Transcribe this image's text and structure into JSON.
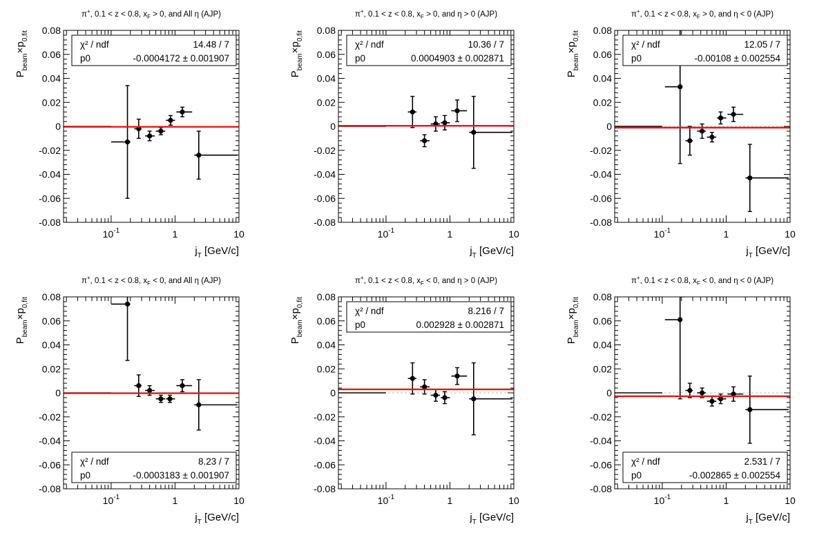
{
  "chart_data": [
    {
      "type": "scatter",
      "title": "π⁺, 0.1 < z < 0.8, x_F > 0, and All η (AJP)",
      "title_parts": {
        "a": "π",
        "a_sup": "+",
        "b": ", 0.1 < z < 0.8, x",
        "b_sub": "F",
        "c": " > 0, and All η (AJP)"
      },
      "xlabel": "j_T [GeV/c]",
      "ylabel": "P_beam×p_0,fit",
      "x_scale": "log",
      "xlim": [
        0.018,
        10
      ],
      "ylim": [
        -0.08,
        0.08
      ],
      "grid": false,
      "stats_position": "top",
      "stats": {
        "chi2_label": "χ² / ndf",
        "chi2_value": "14.48 / 7",
        "p0_label": "p0",
        "p0_value": "-0.0004172 ± 0.001907"
      },
      "fit": {
        "p0": -0.0004172
      },
      "points": [
        {
          "x": 0.18,
          "xlo": 0.1,
          "xhi": 0.2,
          "y": -0.013,
          "ey": 0.047
        },
        {
          "x": 0.27,
          "xlo": 0.23,
          "xhi": 0.3,
          "y": -0.002,
          "ey": 0.008
        },
        {
          "x": 0.4,
          "xlo": 0.34,
          "xhi": 0.48,
          "y": -0.008,
          "ey": 0.004
        },
        {
          "x": 0.6,
          "xlo": 0.5,
          "xhi": 0.7,
          "y": -0.004,
          "ey": 0.003
        },
        {
          "x": 0.85,
          "xlo": 0.72,
          "xhi": 1.0,
          "y": 0.005,
          "ey": 0.004
        },
        {
          "x": 1.3,
          "xlo": 1.05,
          "xhi": 1.85,
          "y": 0.012,
          "ey": 0.004
        },
        {
          "x": 2.35,
          "xlo": 2.0,
          "xhi": 9.5,
          "y": -0.024,
          "ey": 0.02
        },
        {
          "x": 0.0,
          "xlo": 0.018,
          "xhi": 0.1,
          "y": 0.0,
          "ey": 0.0
        }
      ]
    },
    {
      "type": "scatter",
      "title": "π⁺, 0.1 < z < 0.8, x_F > 0, and η > 0 (AJP)",
      "title_parts": {
        "a": "π",
        "a_sup": "+",
        "b": ", 0.1 < z < 0.8, x",
        "b_sub": "F",
        "c": " > 0, and η > 0 (AJP)"
      },
      "xlabel": "j_T [GeV/c]",
      "ylabel": "P_beam×p_0,fit",
      "x_scale": "log",
      "xlim": [
        0.018,
        10
      ],
      "ylim": [
        -0.08,
        0.08
      ],
      "grid": false,
      "stats_position": "top",
      "stats": {
        "chi2_label": "χ² / ndf",
        "chi2_value": "10.36 / 7",
        "p0_label": "p0",
        "p0_value": "0.0004903 ± 0.002871"
      },
      "fit": {
        "p0": 0.0004903
      },
      "points": [
        {
          "x": 0.0,
          "xlo": 0.018,
          "xhi": 0.1,
          "y": 0.0,
          "ey": 0.0
        },
        {
          "x": 0.26,
          "xlo": 0.22,
          "xhi": 0.3,
          "y": 0.012,
          "ey": 0.013
        },
        {
          "x": 0.4,
          "xlo": 0.34,
          "xhi": 0.48,
          "y": -0.012,
          "ey": 0.005
        },
        {
          "x": 0.6,
          "xlo": 0.5,
          "xhi": 0.7,
          "y": 0.002,
          "ey": 0.006
        },
        {
          "x": 0.83,
          "xlo": 0.72,
          "xhi": 1.0,
          "y": 0.003,
          "ey": 0.006
        },
        {
          "x": 1.3,
          "xlo": 1.05,
          "xhi": 1.85,
          "y": 0.013,
          "ey": 0.009
        },
        {
          "x": 2.35,
          "xlo": 2.0,
          "xhi": 9.5,
          "y": -0.005,
          "ey": 0.03
        }
      ]
    },
    {
      "type": "scatter",
      "title": "π⁺, 0.1 < z < 0.8, x_F > 0, and η < 0 (AJP)",
      "title_parts": {
        "a": "π",
        "a_sup": "+",
        "b": ", 0.1 < z < 0.8, x",
        "b_sub": "F",
        "c": " > 0, and η < 0 (AJP)"
      },
      "xlabel": "j_T [GeV/c]",
      "ylabel": "P_beam×p_0,fit",
      "x_scale": "log",
      "xlim": [
        0.018,
        10
      ],
      "ylim": [
        -0.08,
        0.08
      ],
      "grid": false,
      "stats_position": "top",
      "stats": {
        "chi2_label": "χ² / ndf",
        "chi2_value": "12.05 / 7",
        "p0_label": "p0",
        "p0_value": "-0.00108 ± 0.002554"
      },
      "fit": {
        "p0": -0.00108
      },
      "points": [
        {
          "x": 0.0,
          "xlo": 0.018,
          "xhi": 0.1,
          "y": 0.0,
          "ey": 0.0
        },
        {
          "x": 0.19,
          "xlo": 0.11,
          "xhi": 0.2,
          "y": 0.033,
          "ey": 0.064
        },
        {
          "x": 0.27,
          "xlo": 0.23,
          "xhi": 0.3,
          "y": -0.012,
          "ey": 0.012
        },
        {
          "x": 0.42,
          "xlo": 0.35,
          "xhi": 0.48,
          "y": -0.004,
          "ey": 0.006
        },
        {
          "x": 0.6,
          "xlo": 0.5,
          "xhi": 0.7,
          "y": -0.009,
          "ey": 0.004
        },
        {
          "x": 0.82,
          "xlo": 0.72,
          "xhi": 1.0,
          "y": 0.007,
          "ey": 0.005
        },
        {
          "x": 1.3,
          "xlo": 1.05,
          "xhi": 1.85,
          "y": 0.01,
          "ey": 0.006
        },
        {
          "x": 2.35,
          "xlo": 2.0,
          "xhi": 9.5,
          "y": -0.043,
          "ey": 0.028
        }
      ]
    },
    {
      "type": "scatter",
      "title": "π⁺, 0.1 < z < 0.8, x_F < 0, and All η (AJP)",
      "title_parts": {
        "a": "π",
        "a_sup": "+",
        "b": ", 0.1 < z < 0.8, x",
        "b_sub": "F",
        "c": " < 0, and All η (AJP)"
      },
      "xlabel": "j_T [GeV/c]",
      "ylabel": "P_beam×p_0,fit",
      "x_scale": "log",
      "xlim": [
        0.018,
        10
      ],
      "ylim": [
        -0.08,
        0.08
      ],
      "grid": false,
      "stats_position": "bottom",
      "stats": {
        "chi2_label": "χ² / ndf",
        "chi2_value": "8.23 / 7",
        "p0_label": "p0",
        "p0_value": "-0.0003183 ± 0.001907"
      },
      "fit": {
        "p0": -0.0003183
      },
      "points": [
        {
          "x": 0.18,
          "xlo": 0.1,
          "xhi": 0.2,
          "y": 0.074,
          "ey": 0.047
        },
        {
          "x": 0.27,
          "xlo": 0.23,
          "xhi": 0.3,
          "y": 0.006,
          "ey": 0.009
        },
        {
          "x": 0.4,
          "xlo": 0.34,
          "xhi": 0.48,
          "y": 0.002,
          "ey": 0.004
        },
        {
          "x": 0.6,
          "xlo": 0.5,
          "xhi": 0.7,
          "y": -0.005,
          "ey": 0.003
        },
        {
          "x": 0.83,
          "xlo": 0.72,
          "xhi": 1.0,
          "y": -0.005,
          "ey": 0.003
        },
        {
          "x": 1.3,
          "xlo": 1.05,
          "xhi": 1.85,
          "y": 0.006,
          "ey": 0.005
        },
        {
          "x": 2.35,
          "xlo": 2.0,
          "xhi": 9.5,
          "y": -0.01,
          "ey": 0.021
        },
        {
          "x": 0.0,
          "xlo": 0.018,
          "xhi": 0.1,
          "y": 0.0,
          "ey": 0.0
        }
      ]
    },
    {
      "type": "scatter",
      "title": "π⁺, 0.1 < z < 0.8, x_F < 0, and η > 0 (AJP)",
      "title_parts": {
        "a": "π",
        "a_sup": "+",
        "b": ", 0.1 < z < 0.8, x",
        "b_sub": "F",
        "c": " < 0, and η > 0 (AJP)"
      },
      "xlabel": "j_T [GeV/c]",
      "ylabel": "P_beam×p_0,fit",
      "x_scale": "log",
      "xlim": [
        0.018,
        10
      ],
      "ylim": [
        -0.08,
        0.08
      ],
      "grid": false,
      "stats_position": "top",
      "stats": {
        "chi2_label": "χ² / ndf",
        "chi2_value": "8.216 / 7",
        "p0_label": "p0",
        "p0_value": "0.002928 ± 0.002871"
      },
      "fit": {
        "p0": 0.002928
      },
      "points": [
        {
          "x": 0.0,
          "xlo": 0.018,
          "xhi": 0.1,
          "y": 0.0,
          "ey": 0.0
        },
        {
          "x": 0.26,
          "xlo": 0.22,
          "xhi": 0.3,
          "y": 0.012,
          "ey": 0.013
        },
        {
          "x": 0.4,
          "xlo": 0.34,
          "xhi": 0.48,
          "y": 0.005,
          "ey": 0.006
        },
        {
          "x": 0.6,
          "xlo": 0.5,
          "xhi": 0.7,
          "y": -0.002,
          "ey": 0.005
        },
        {
          "x": 0.83,
          "xlo": 0.72,
          "xhi": 1.0,
          "y": -0.004,
          "ey": 0.005
        },
        {
          "x": 1.3,
          "xlo": 1.05,
          "xhi": 1.85,
          "y": 0.014,
          "ey": 0.007
        },
        {
          "x": 2.35,
          "xlo": 2.0,
          "xhi": 9.5,
          "y": -0.005,
          "ey": 0.03
        }
      ]
    },
    {
      "type": "scatter",
      "title": "π⁺, 0.1 < z < 0.8, x_F < 0, and η < 0 (AJP)",
      "title_parts": {
        "a": "π",
        "a_sup": "+",
        "b": ", 0.1 < z < 0.8, x",
        "b_sub": "F",
        "c": " < 0, and η < 0 (AJP)"
      },
      "xlabel": "j_T [GeV/c]",
      "ylabel": "P_beam×p_0,fit",
      "x_scale": "log",
      "xlim": [
        0.018,
        10
      ],
      "ylim": [
        -0.08,
        0.08
      ],
      "grid": false,
      "stats_position": "bottom",
      "stats": {
        "chi2_label": "χ² / ndf",
        "chi2_value": "2.531 / 7",
        "p0_label": "p0",
        "p0_value": "-0.002865 ± 0.002554"
      },
      "fit": {
        "p0": -0.002865
      },
      "points": [
        {
          "x": 0.0,
          "xlo": 0.018,
          "xhi": 0.1,
          "y": 0.0,
          "ey": 0.0
        },
        {
          "x": 0.19,
          "xlo": 0.11,
          "xhi": 0.2,
          "y": 0.061,
          "ey": 0.066
        },
        {
          "x": 0.27,
          "xlo": 0.23,
          "xhi": 0.3,
          "y": 0.002,
          "ey": 0.006
        },
        {
          "x": 0.42,
          "xlo": 0.35,
          "xhi": 0.48,
          "y": 0.0,
          "ey": 0.004
        },
        {
          "x": 0.6,
          "xlo": 0.5,
          "xhi": 0.7,
          "y": -0.007,
          "ey": 0.004
        },
        {
          "x": 0.82,
          "xlo": 0.72,
          "xhi": 1.0,
          "y": -0.005,
          "ey": 0.004
        },
        {
          "x": 1.3,
          "xlo": 1.05,
          "xhi": 1.85,
          "y": -0.001,
          "ey": 0.006
        },
        {
          "x": 2.35,
          "xlo": 2.0,
          "xhi": 9.5,
          "y": -0.014,
          "ey": 0.028
        }
      ]
    }
  ],
  "axis": {
    "y_ticks": [
      "0.08",
      "0.06",
      "0.04",
      "0.02",
      "0",
      "-0.02",
      "-0.04",
      "-0.06",
      "-0.08"
    ],
    "x_tick_labels": [
      {
        "base": "10",
        "exp": "-1",
        "value": 0.1
      },
      {
        "base": "1",
        "exp": "",
        "value": 1
      },
      {
        "base": "10",
        "exp": "",
        "value": 10
      }
    ],
    "xlabel_main": "j",
    "xlabel_sub": "T",
    "xlabel_unit": " [GeV/c]",
    "ylabel_main": "P",
    "ylabel_sub1": "beam",
    "ylabel_mid": "×p",
    "ylabel_sub2": "0,fit"
  },
  "colors": {
    "fit_line": "#e8150f",
    "points": "#000000",
    "zero_line": "#bbbbbb",
    "frame": "#000000"
  }
}
